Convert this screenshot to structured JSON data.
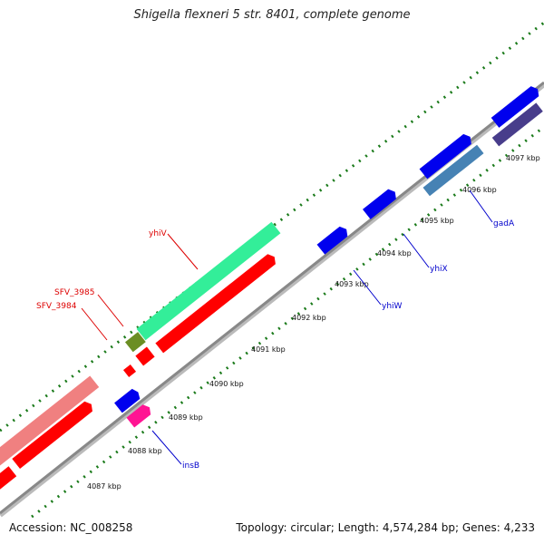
{
  "title": "Shigella flexneri 5 str. 8401, complete genome",
  "footer": {
    "accession": "Accession: NC_008258",
    "stats": "Topology: circular; Length: 4,574,284 bp; Genes: 4,233"
  },
  "colors": {
    "backbone": "#888888",
    "tick": "#1a7a1a",
    "red": "#ff0000",
    "blue": "#0000ee",
    "label_red": "#dd0000",
    "label_blue": "#0000cc"
  },
  "scale": {
    "unit": "kbp",
    "ticks": [
      {
        "value": 4087,
        "label": "4087 kbp"
      },
      {
        "value": 4088,
        "label": "4088 kbp"
      },
      {
        "value": 4089,
        "label": "4089 kbp"
      },
      {
        "value": 4090,
        "label": "4090 kbp"
      },
      {
        "value": 4091,
        "label": "4091 kbp"
      },
      {
        "value": 4092,
        "label": "4092 kbp"
      },
      {
        "value": 4093,
        "label": "4093 kbp"
      },
      {
        "value": 4094,
        "label": "4094 kbp"
      },
      {
        "value": 4095,
        "label": "4095 kbp"
      },
      {
        "value": 4096,
        "label": "4096 kbp"
      },
      {
        "value": 4097,
        "label": "4097 kbp"
      }
    ]
  },
  "gene_labels": [
    {
      "name": "yhiV",
      "color": "red"
    },
    {
      "name": "SFV_3985",
      "color": "red"
    },
    {
      "name": "SFV_3984",
      "color": "red"
    },
    {
      "name": "insB",
      "color": "blue"
    },
    {
      "name": "yhiW",
      "color": "blue"
    },
    {
      "name": "yhiX",
      "color": "blue"
    },
    {
      "name": "gadA",
      "color": "blue"
    }
  ]
}
